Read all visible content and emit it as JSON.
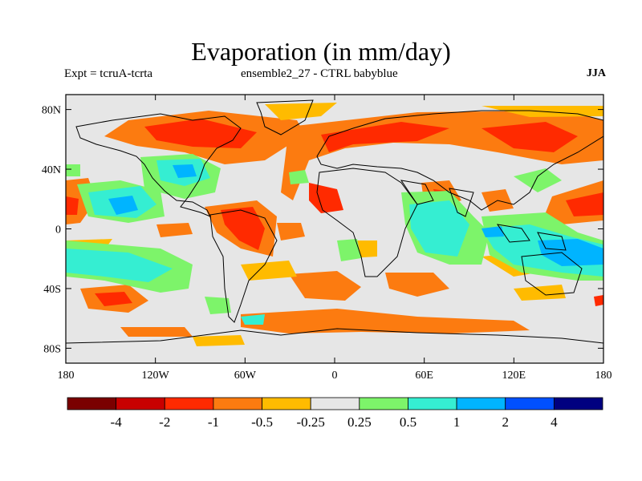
{
  "title": "Evaporation (in mm/day)",
  "subtitle_left": "Expt = tcruA-tcrta",
  "subtitle_center": "ensemble2_27 - CTRL babyblue",
  "season": "JJA",
  "map": {
    "projection": "cylindrical-equidistant",
    "lon_range": [
      -180,
      180
    ],
    "lat_range": [
      -90,
      90
    ],
    "background_color": "#e6e6e6",
    "x_ticks": [
      "180",
      "120W",
      "60W",
      "0",
      "60E",
      "120E",
      "180"
    ],
    "y_ticks": [
      "80N",
      "40N",
      "0",
      "40S",
      "80S"
    ]
  },
  "colorbar": {
    "colors": [
      "#7a0000",
      "#c80000",
      "#ff2a00",
      "#fc7b10",
      "#ffbb00",
      "#e6e6e6",
      "#7df46a",
      "#35eed2",
      "#00b4ff",
      "#0050ff",
      "#000080"
    ],
    "labels": [
      "-4",
      "-2",
      "-1",
      "-0.5",
      "-0.25",
      "0.25",
      "0.5",
      "1",
      "2",
      "4"
    ]
  }
}
